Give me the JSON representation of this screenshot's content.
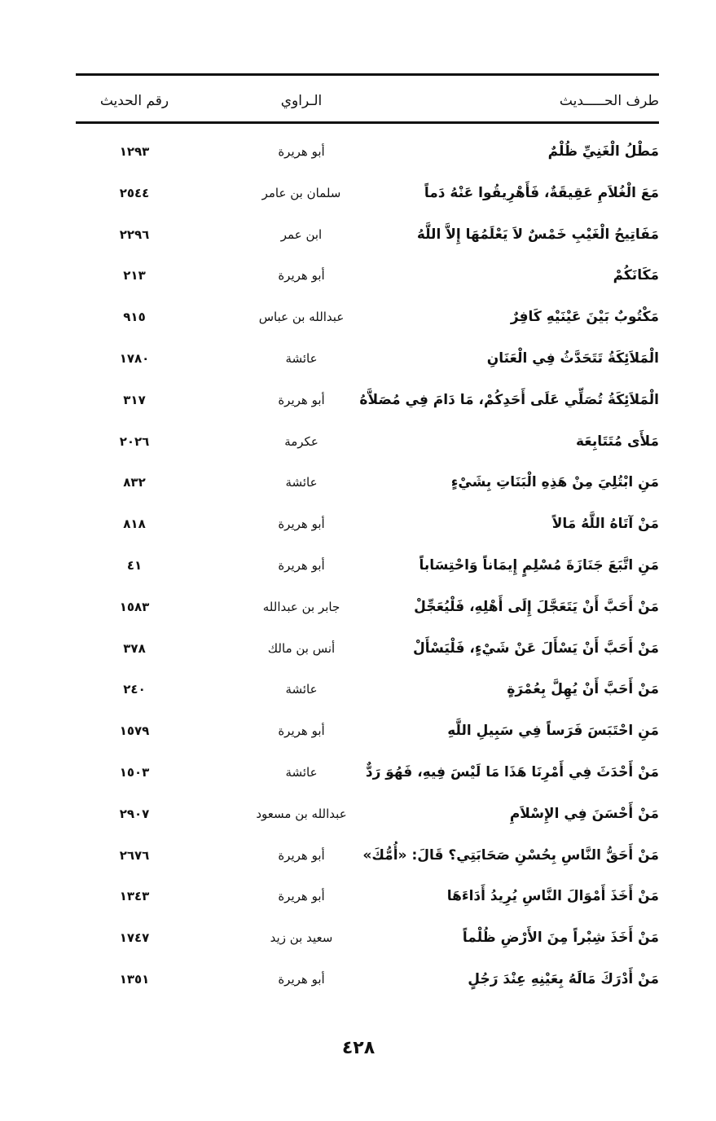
{
  "header": {
    "hadith": "طرف الحـــــديث",
    "narrator": "الـراوي",
    "number": "رقم الحديث"
  },
  "rows": [
    {
      "hadith": "مَطْلُ الْغَنِيِّ ظُلْمٌ",
      "narrator": "أبو هريرة",
      "number": "١٢٩٣"
    },
    {
      "hadith": "مَعَ الْغُلاَمِ عَقِيقَةٌ، فَأَهْرِيقُوا عَنْهُ دَماً",
      "narrator": "سلمان بن عامر",
      "number": "٢٥٤٤"
    },
    {
      "hadith": "مَفَاتِيحُ الْغَيْبِ خَمْسٌ لاَ يَعْلَمُهَا إِلاَّ اللَّهُ",
      "narrator": "ابن عمر",
      "number": "٢٢٩٦"
    },
    {
      "hadith": "مَكَانَكُمْ",
      "narrator": "أبو هريرة",
      "number": "٢١٣"
    },
    {
      "hadith": "مَكْتُوبٌ بَيْنَ عَيْنَيْهِ كَافِرٌ",
      "narrator": "عبدالله بن عباس",
      "number": "٩١٥"
    },
    {
      "hadith": "الْمَلاَئِكَةُ تَتَحَدَّثُ فِي الْعَنَانِ",
      "narrator": "عائشة",
      "number": "١٧٨٠"
    },
    {
      "hadith": "الْمَلاَئِكَةُ تُصَلِّي عَلَى أَحَدِكُمْ، مَا دَامَ فِي مُصَلاَّهُ",
      "narrator": "أبو هريرة",
      "number": "٣١٧"
    },
    {
      "hadith": "مَلأَى مُتَتَابِعَة",
      "narrator": "عكرمة",
      "number": "٢٠٢٦"
    },
    {
      "hadith": "مَنِ ابْتُلِيَ مِنْ هَذِهِ الْبَنَاتِ بِشَيْءٍ",
      "narrator": "عائشة",
      "number": "٨٣٢"
    },
    {
      "hadith": "مَنْ آتَاهُ اللَّهُ مَالاً",
      "narrator": "أبو هريرة",
      "number": "٨١٨"
    },
    {
      "hadith": "مَنِ اتَّبَعَ جَنَازَةَ مُسْلِمٍ إِيمَاناً وَاحْتِسَاباً",
      "narrator": "أبو هريرة",
      "number": "٤١"
    },
    {
      "hadith": "مَنْ أَحَبَّ أَنْ يَتَعَجَّلَ إِلَى أَهْلِهِ، فَلْيُعَجِّلْ",
      "narrator": "جابر بن عبدالله",
      "number": "١٥٨٣"
    },
    {
      "hadith": "مَنْ أَحَبَّ أَنْ يَسْأَلَ عَنْ شَيْءٍ، فَلْيَسْأَلْ",
      "narrator": "أنس بن مالك",
      "number": "٣٧٨"
    },
    {
      "hadith": "مَنْ أَحَبَّ أَنْ يُهِلَّ بِعُمْرَةٍ",
      "narrator": "عائشة",
      "number": "٢٤٠"
    },
    {
      "hadith": "مَنِ احْتَبَسَ فَرَساً فِي سَبِيلِ اللَّهِ",
      "narrator": "أبو هريرة",
      "number": "١٥٧٩"
    },
    {
      "hadith": "مَنْ أَحْدَثَ فِي أَمْرِنَا هَذَا مَا لَيْسَ فِيهِ، فَهُوَ رَدٌّ",
      "narrator": "عائشة",
      "number": "١٥٠٣"
    },
    {
      "hadith": "مَنْ أَحْسَنَ فِي الإِسْلاَمِ",
      "narrator": "عبدالله بن مسعود",
      "number": "٢٩٠٧"
    },
    {
      "hadith": "مَنْ أَحَقُّ النَّاسِ بِحُسْنِ صَحَابَتِي؟ قَالَ: «أُمُّكَ»",
      "narrator": "أبو هريرة",
      "number": "٢٦٧٦"
    },
    {
      "hadith": "مَنْ أَخَذَ أَمْوَالَ النَّاسِ يُرِيدُ أَدَاءَهَا",
      "narrator": "أبو هريرة",
      "number": "١٣٤٣"
    },
    {
      "hadith": "مَنْ أَخَذَ شِبْراً مِنَ الأَرْضِ ظُلْماً",
      "narrator": "سعيد بن زيد",
      "number": "١٧٤٧"
    },
    {
      "hadith": "مَنْ أَدْرَكَ مَالَهُ بِعَيْنِهِ عِنْدَ رَجُلٍ",
      "narrator": "أبو هريرة",
      "number": "١٣٥١"
    }
  ],
  "page_number": "٤٢٨"
}
